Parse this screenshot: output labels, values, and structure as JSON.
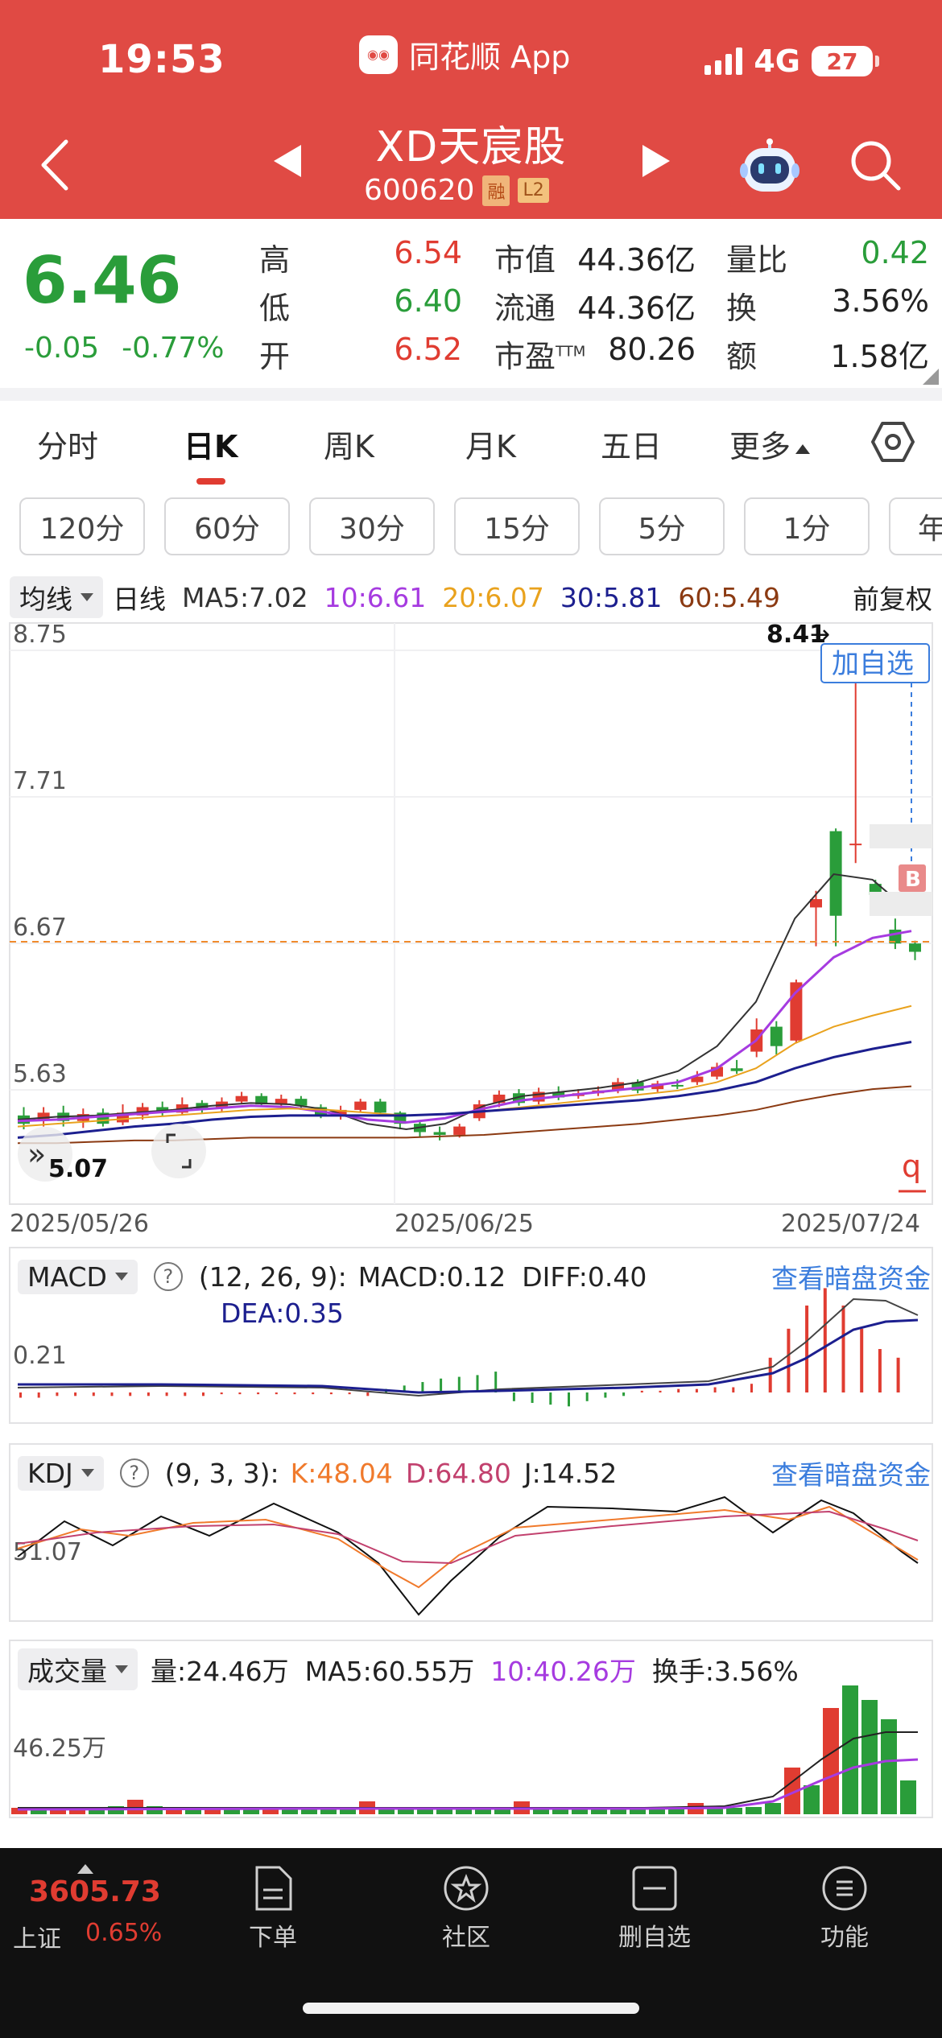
{
  "status_bar": {
    "time": "19:53",
    "app_name": "同花顺 App",
    "network": "4G",
    "battery": "27"
  },
  "header": {
    "stock_name": "XD天宸股",
    "stock_code": "600620",
    "tag_margin": "融",
    "tag_level": "L2"
  },
  "quote": {
    "price": "6.46",
    "change": "-0.05",
    "change_pct": "-0.77%",
    "high_label": "高",
    "high": "6.54",
    "low_label": "低",
    "low": "6.40",
    "open_label": "开",
    "open": "6.52",
    "mktcap_label": "市值",
    "mktcap": "44.36亿",
    "float_label": "流通",
    "float": "44.36亿",
    "pe_label": "市盈",
    "pe_sup": "TTM",
    "pe": "80.26",
    "vol_ratio_label": "量比",
    "vol_ratio": "0.42",
    "turnover_label": "换",
    "turnover": "3.56%",
    "amount_label": "额",
    "amount": "1.58亿"
  },
  "period_tabs": [
    "分时",
    "日K",
    "周K",
    "月K",
    "五日",
    "更多"
  ],
  "active_tab": "日K",
  "minute_tabs": [
    "120分",
    "60分",
    "30分",
    "15分",
    "5分",
    "1分",
    "年"
  ],
  "ma_row": {
    "selector": "均线",
    "period": "日线",
    "ma5": "MA5:7.02",
    "ma10": "10:6.61",
    "ma20": "20:6.07",
    "ma30": "30:5.81",
    "ma60": "60:5.49",
    "adjust": "前复权"
  },
  "kline": {
    "y_ticks": [
      "8.75",
      "7.71",
      "6.67",
      "5.63"
    ],
    "min_label": "5.07",
    "max_label": "8.41",
    "add_watch": "加自选",
    "b_marker": "B",
    "q_marker": "q",
    "dates": [
      "2025/05/26",
      "2025/06/25",
      "2025/07/24"
    ]
  },
  "macd": {
    "selector": "MACD",
    "params": "(12, 26, 9):",
    "macd": "MACD:0.12",
    "diff": "DIFF:0.40",
    "dea": "DEA:0.35",
    "y_tick": "0.21",
    "link": "查看暗盘资金"
  },
  "kdj": {
    "selector": "KDJ",
    "params": "(9, 3, 3):",
    "k": "K:48.04",
    "d": "D:64.80",
    "j": "J:14.52",
    "y_tick": "51.07",
    "link": "查看暗盘资金"
  },
  "volume": {
    "selector": "成交量",
    "vol": "量:24.46万",
    "ma5": "MA5:60.55万",
    "ma10": "10:40.26万",
    "turnover": "换手:3.56%",
    "y_tick": "46.25万"
  },
  "bottom_bar": {
    "index_value": "3605.73",
    "index_name": "上证",
    "index_pct": "0.65%",
    "nav": [
      "下单",
      "社区",
      "删自选",
      "功能"
    ]
  },
  "colors": {
    "header_red": "#e04a44",
    "up": "#e03c31",
    "down": "#2a9d3a",
    "ma5": "#333333",
    "ma10": "#a63be0",
    "ma20": "#e9a21d",
    "ma30": "#1c1f8f",
    "ma60": "#8b3a12"
  }
}
